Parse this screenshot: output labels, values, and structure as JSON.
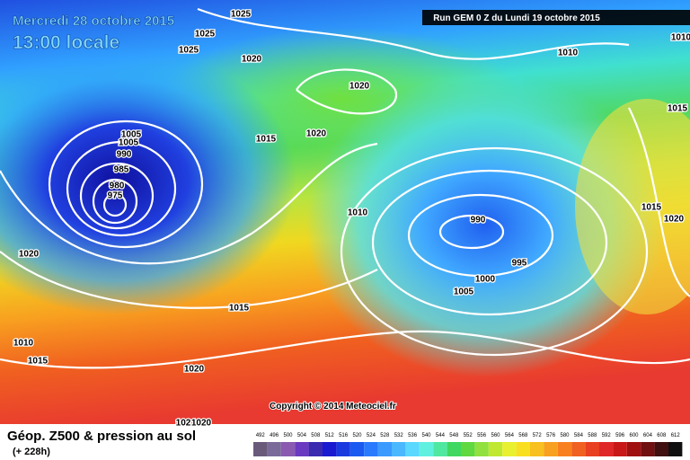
{
  "header": {
    "date": "Mercredi 28 octobre 2015",
    "time": "13:00 locale",
    "run": "Run GEM 0 Z du Lundi 19 octobre 2015"
  },
  "isobar_labels": [
    "1025",
    "1025",
    "1025",
    "1020",
    "1020",
    "1010",
    "1010",
    "1015",
    "1005",
    "1005",
    "990",
    "985",
    "980",
    "975",
    "1015",
    "1020",
    "1010",
    "990",
    "995",
    "1000",
    "1005",
    "1015",
    "1020",
    "1020",
    "1015",
    "1010",
    "1015",
    "1020",
    "102",
    "1020"
  ],
  "copyright": "Copyright © 2014 Meteociel.fr",
  "footer": {
    "title": "Géop. Z500 & pression au sol",
    "lead": "(+ 228h)"
  },
  "legend": {
    "values": [
      492,
      496,
      500,
      504,
      508,
      512,
      516,
      520,
      524,
      528,
      532,
      536,
      540,
      544,
      548,
      552,
      556,
      560,
      564,
      568,
      572,
      576,
      580,
      584,
      588,
      592,
      596,
      600,
      604,
      608,
      612
    ],
    "colors": [
      "#6a5a7a",
      "#7a6a9a",
      "#8a5ab0",
      "#6a3ac0",
      "#3a2ab0",
      "#1a1ad0",
      "#1a3ae0",
      "#1a5af0",
      "#2a7aff",
      "#3a9aff",
      "#4ab8ff",
      "#5ad8ff",
      "#5ff0e0",
      "#50e8a0",
      "#40d860",
      "#60d840",
      "#90e040",
      "#c0e830",
      "#e8f030",
      "#f8e020",
      "#f8c020",
      "#f8a020",
      "#f88020",
      "#f06020",
      "#e84020",
      "#e02828",
      "#c81818",
      "#a01010",
      "#701010",
      "#401010",
      "#101010"
    ]
  }
}
